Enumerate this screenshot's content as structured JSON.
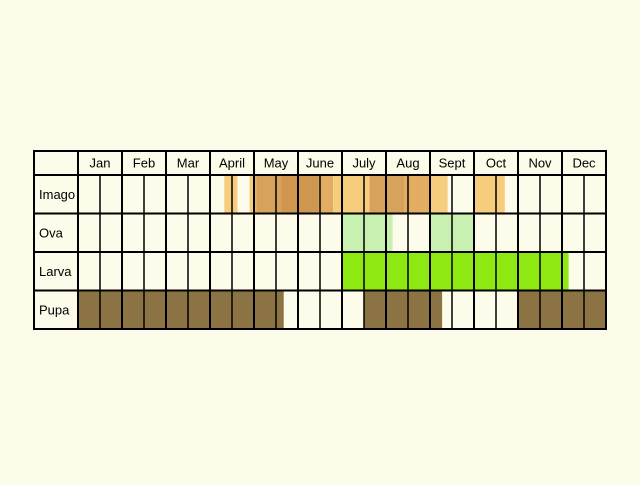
{
  "chart_data": {
    "type": "table",
    "title": "",
    "months": [
      "Jan",
      "Feb",
      "Mar",
      "April",
      "May",
      "June",
      "July",
      "Aug",
      "Sept",
      "Oct",
      "Nov",
      "Dec"
    ],
    "rows": [
      {
        "label": "Imago",
        "periods": [
          {
            "start": 6.65,
            "end": 7.25,
            "color": "#f5cd7c"
          },
          {
            "start": 7.8,
            "end": 8.05,
            "color": "#f5cd7c"
          },
          {
            "start": 8.05,
            "end": 8.1,
            "color": "#e2ad62"
          },
          {
            "start": 8.1,
            "end": 9.25,
            "color": "#d7a25c"
          },
          {
            "start": 9.25,
            "end": 10.95,
            "color": "#cf9650"
          },
          {
            "start": 10.95,
            "end": 11.6,
            "color": "#e2ad62"
          },
          {
            "start": 11.6,
            "end": 13.25,
            "color": "#f5cd7c"
          },
          {
            "start": 13.25,
            "end": 14.75,
            "color": "#d7a25c"
          },
          {
            "start": 14.75,
            "end": 14.8,
            "color": "#cf9650"
          },
          {
            "start": 14.8,
            "end": 16.0,
            "color": "#e2ad62"
          },
          {
            "start": 16.0,
            "end": 16.8,
            "color": "#f5cd7c"
          },
          {
            "start": 18.0,
            "end": 19.4,
            "color": "#f5cd7c"
          }
        ]
      },
      {
        "label": "Ova",
        "periods": [
          {
            "start": 12.0,
            "end": 14.3,
            "color": "#c8f0b0"
          },
          {
            "start": 16.0,
            "end": 18.0,
            "color": "#c8f0b0"
          }
        ]
      },
      {
        "label": "Larva",
        "periods": [
          {
            "start": 12.0,
            "end": 22.3,
            "color": "#8ee812"
          }
        ]
      },
      {
        "label": "Pupa",
        "periods": [
          {
            "start": 0.0,
            "end": 9.35,
            "color": "#8c7344"
          },
          {
            "start": 13.0,
            "end": 16.55,
            "color": "#8c7344"
          },
          {
            "start": 20.0,
            "end": 24.0,
            "color": "#8c7344"
          }
        ]
      }
    ]
  }
}
